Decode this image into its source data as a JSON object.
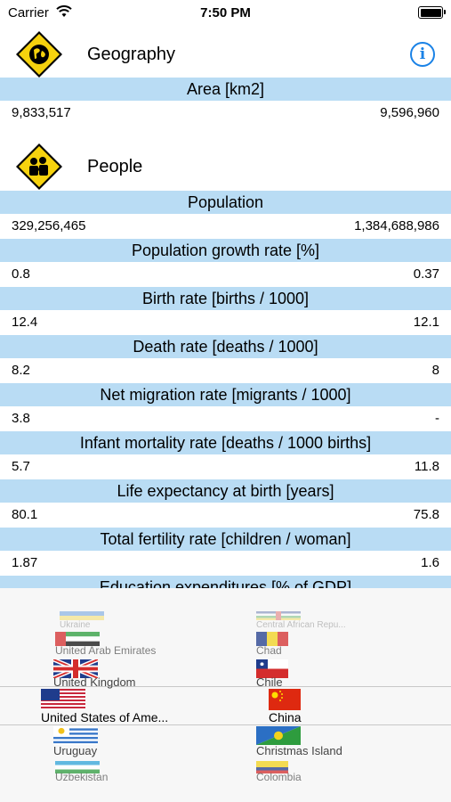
{
  "status": {
    "carrier": "Carrier",
    "time": "7:50 PM"
  },
  "geography": {
    "title": "Geography",
    "metrics": [
      {
        "label": "Area [km2]",
        "left": "9,833,517",
        "right": "9,596,960"
      }
    ]
  },
  "people": {
    "title": "People",
    "metrics": [
      {
        "label": "Population",
        "left": "329,256,465",
        "right": "1,384,688,986"
      },
      {
        "label": "Population growth rate [%]",
        "left": "0.8",
        "right": "0.37"
      },
      {
        "label": "Birth rate [births / 1000]",
        "left": "12.4",
        "right": "12.1"
      },
      {
        "label": "Death rate [deaths / 1000]",
        "left": "8.2",
        "right": "8"
      },
      {
        "label": "Net migration rate [migrants / 1000]",
        "left": "3.8",
        "right": "-"
      },
      {
        "label": "Infant mortality rate [deaths / 1000 births]",
        "left": "5.7",
        "right": "11.8"
      },
      {
        "label": "Life expectancy at birth [years]",
        "left": "80.1",
        "right": "75.8"
      },
      {
        "label": "Total fertility rate [children / woman]",
        "left": "1.87",
        "right": "1.6"
      },
      {
        "label": "Education expenditures [% of GDP]"
      }
    ]
  },
  "picker": {
    "left_column": [
      "Ukraine",
      "United Arab Emirates",
      "United Kingdom",
      "United States of Ame...",
      "Uruguay",
      "Uzbekistan"
    ],
    "right_column": [
      "Central African Repu...",
      "Chad",
      "Chile",
      "China",
      "Christmas Island",
      "Colombia"
    ],
    "selected_left": "United States of Ame...",
    "selected_right": "China"
  }
}
